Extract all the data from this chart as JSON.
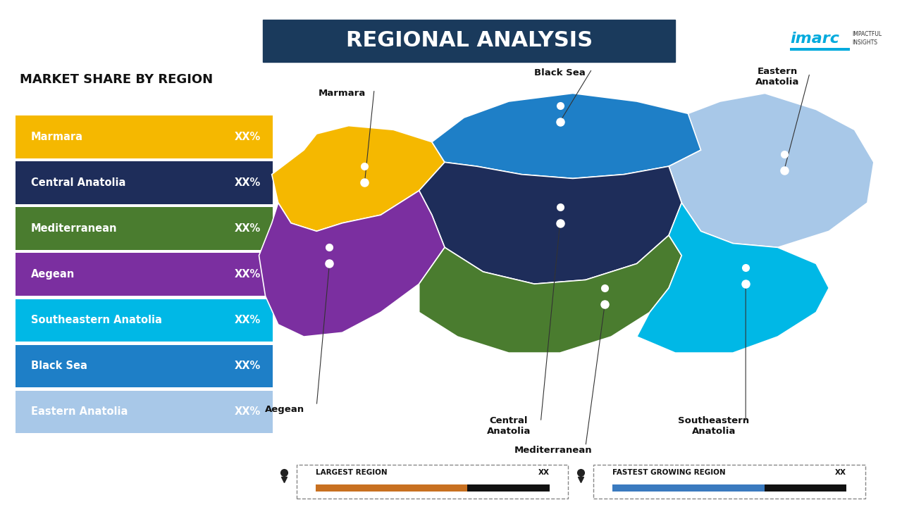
{
  "title": "REGIONAL ANALYSIS",
  "title_box_color": "#1a3a5c",
  "title_text_color": "#ffffff",
  "background_color": "#ffffff",
  "left_panel_title": "MARKET SHARE BY REGION",
  "regions": [
    {
      "name": "Marmara",
      "color": "#F5B800",
      "value": "XX%"
    },
    {
      "name": "Central Anatolia",
      "color": "#1e2d5a",
      "value": "XX%"
    },
    {
      "name": "Mediterranean",
      "color": "#4a7c2f",
      "value": "XX%"
    },
    {
      "name": "Aegean",
      "color": "#7b2fa0",
      "value": "XX%"
    },
    {
      "name": "Southeastern Anatolia",
      "color": "#00b8e6",
      "value": "XX%"
    },
    {
      "name": "Black Sea",
      "color": "#1e7fc7",
      "value": "XX%"
    },
    {
      "name": "Eastern Anatolia",
      "color": "#a8c8e8",
      "value": "XX%"
    }
  ],
  "footer_items": [
    {
      "label": "LARGEST REGION",
      "value": "XX",
      "bar_color": "#c87020",
      "bar_color2": "#111111"
    },
    {
      "label": "FASTEST GROWING REGION",
      "value": "XX",
      "bar_color": "#3a7abf",
      "bar_color2": "#111111"
    }
  ],
  "imarc_text": "imarc",
  "imarc_sub": "IMPACTFUL\nINSIGHTS"
}
